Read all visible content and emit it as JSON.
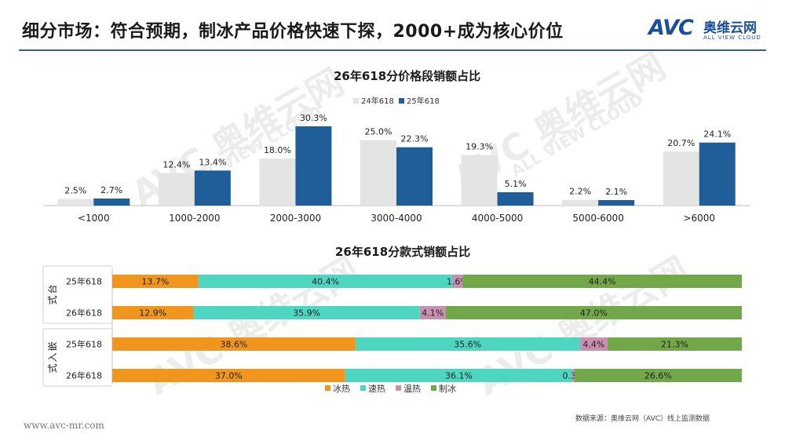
{
  "header": {
    "title": "细分市场：符合预期，制冰产品价格快速下探，2000+成为核心价位"
  },
  "logo": {
    "mark": "AVC",
    "cn": "奥维云网",
    "en": "ALL VIEW CLOUD"
  },
  "colors": {
    "title_rule": "#2f5f9e",
    "gray": "#e4e4e4",
    "blue": "#1f5e98",
    "orange": "#f0961f",
    "teal": "#4fd6c0",
    "pink": "#c98fb0",
    "green": "#73a84a"
  },
  "chart_data": [
    {
      "type": "bar",
      "title": "26年618分价格段销额占比",
      "categories": [
        "<1000",
        "1000-2000",
        "2000-3000",
        "3000-4000",
        "4000-5000",
        "5000-6000",
        ">6000"
      ],
      "series": [
        {
          "name": "24年618",
          "color": "#e4e4e4",
          "values": [
            2.5,
            12.4,
            18.0,
            25.0,
            19.3,
            2.2,
            20.7
          ],
          "labels": [
            "2.5%",
            "12.4%",
            "18.0%",
            "25.0%",
            "19.3%",
            "2.2%",
            "20.7%"
          ]
        },
        {
          "name": "25年618",
          "color": "#1f5e98",
          "values": [
            2.7,
            13.4,
            30.3,
            22.3,
            5.1,
            2.1,
            24.1
          ],
          "labels": [
            "2.7%",
            "13.4%",
            "30.3%",
            "22.3%",
            "5.1%",
            "2.1%",
            "24.1%"
          ]
        }
      ],
      "ylim": [
        0,
        30.3
      ],
      "legend": "top-center",
      "grid": false
    },
    {
      "type": "bar",
      "title": "26年618分款式销额占比",
      "groups": [
        {
          "label": "台式",
          "rows": [
            "25年618",
            "26年618"
          ]
        },
        {
          "label": "嵌入式",
          "rows": [
            "25年618",
            "26年618"
          ]
        }
      ],
      "rows": [
        "25年618",
        "26年618",
        "25年618",
        "26年618"
      ],
      "series": [
        {
          "name": "冰热",
          "color": "#f0961f",
          "values": [
            13.7,
            12.9,
            38.6,
            37.0
          ],
          "labels": [
            "13.7%",
            "12.9%",
            "38.6%",
            "37.0%"
          ]
        },
        {
          "name": "速热",
          "color": "#4fd6c0",
          "values": [
            40.4,
            35.9,
            35.6,
            36.1
          ],
          "labels": [
            "40.4%",
            "35.9%",
            "35.6%",
            "36.1%"
          ]
        },
        {
          "name": "温热",
          "color": "#c98fb0",
          "values": [
            1.6,
            4.1,
            4.4,
            0.3
          ],
          "labels": [
            "1.6%",
            "4.1%",
            "4.4%",
            "0.3%"
          ]
        },
        {
          "name": "制冰",
          "color": "#73a84a",
          "values": [
            44.4,
            47.0,
            21.3,
            26.6
          ],
          "labels": [
            "44.4%",
            "47.0%",
            "21.3%",
            "26.6%"
          ]
        }
      ],
      "stacked": true,
      "orientation": "horizontal",
      "legend": "bottom-center"
    }
  ],
  "footer": {
    "url": "www.avc-mr.com",
    "source": "数据来源：奥维云网（AVC）线上监测数据"
  }
}
